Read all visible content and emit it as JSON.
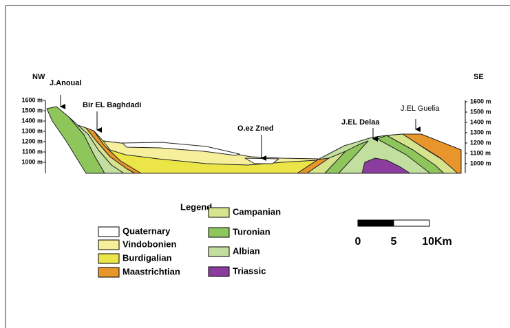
{
  "section": {
    "labels": {
      "nw": "NW",
      "se": "SE",
      "anoual": "J.Anoual",
      "baghdadi": "Bir EL Baghdadi",
      "zned": "O.ez Zned",
      "delaa": "J.EL Delaa",
      "guelia": "J.EL Guelia"
    },
    "left_ticks": [
      "1600 m",
      "1500 m",
      "1400 m",
      "1300 m",
      "1200 m",
      "1100 m",
      "1000 m"
    ],
    "right_ticks": [
      "1600 m",
      "1500 m",
      "1400 m",
      "1300 m",
      "1200 m",
      "1100 m",
      "1000 m"
    ]
  },
  "legend": {
    "title": "Legend",
    "items": [
      {
        "label": "Quaternary",
        "color": "#ffffff"
      },
      {
        "label": "Vindobonien",
        "color": "#f6f09c"
      },
      {
        "label": "Burdigalian",
        "color": "#ece548"
      },
      {
        "label": "Maastrichtian",
        "color": "#e8952b"
      },
      {
        "label": "Campanian",
        "color": "#d7e48e"
      },
      {
        "label": "Turonian",
        "color": "#8ec65b"
      },
      {
        "label": "Albian",
        "color": "#c3dfa0"
      },
      {
        "label": "Triassic",
        "color": "#8a3d9e"
      }
    ]
  },
  "scale": {
    "labels": [
      "0",
      "5",
      "10Km"
    ]
  }
}
